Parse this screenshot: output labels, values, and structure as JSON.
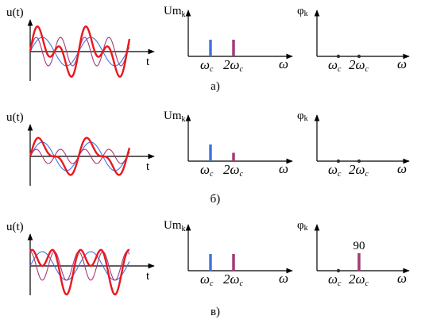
{
  "colors": {
    "total": "#e8191e",
    "fundamental": "#4472e0",
    "harmonic": "#a33a78",
    "axis": "#000000",
    "background": "#ffffff"
  },
  "labels": {
    "u_axis": "u(t)",
    "t_axis": "t",
    "um_main": "Um",
    "um_sub": "k",
    "phi_main": "φ",
    "phi_sub": "k",
    "omega_axis": "ω",
    "omega_c_main": "ω",
    "omega_c_sub": "c",
    "two_omega_c_main": "2ω",
    "two_omega_c_sub": "c"
  },
  "rows": [
    {
      "caption": "а)",
      "waveform": {
        "fundamental_amplitude": 1.0,
        "harmonic_amplitude": 1.0,
        "harmonic_phase_deg": 0
      },
      "amplitude_spectrum": [
        {
          "harmonic": 1,
          "value": 1.0
        },
        {
          "harmonic": 2,
          "value": 1.0
        }
      ],
      "phase_spectrum": [
        {
          "harmonic": 1,
          "value": 0
        },
        {
          "harmonic": 2,
          "value": 0
        }
      ],
      "phase_annotation": ""
    },
    {
      "caption": "б)",
      "waveform": {
        "fundamental_amplitude": 1.0,
        "harmonic_amplitude": 0.5,
        "harmonic_phase_deg": 0
      },
      "amplitude_spectrum": [
        {
          "harmonic": 1,
          "value": 1.0
        },
        {
          "harmonic": 2,
          "value": 0.5
        }
      ],
      "phase_spectrum": [
        {
          "harmonic": 1,
          "value": 0
        },
        {
          "harmonic": 2,
          "value": 0
        }
      ],
      "phase_annotation": ""
    },
    {
      "caption": "в)",
      "waveform": {
        "fundamental_amplitude": 1.0,
        "harmonic_amplitude": 1.0,
        "harmonic_phase_deg": 90
      },
      "amplitude_spectrum": [
        {
          "harmonic": 1,
          "value": 1.0
        },
        {
          "harmonic": 2,
          "value": 1.0
        }
      ],
      "phase_spectrum": [
        {
          "harmonic": 1,
          "value": 0
        },
        {
          "harmonic": 2,
          "value": 90
        }
      ],
      "phase_annotation": "90"
    }
  ]
}
